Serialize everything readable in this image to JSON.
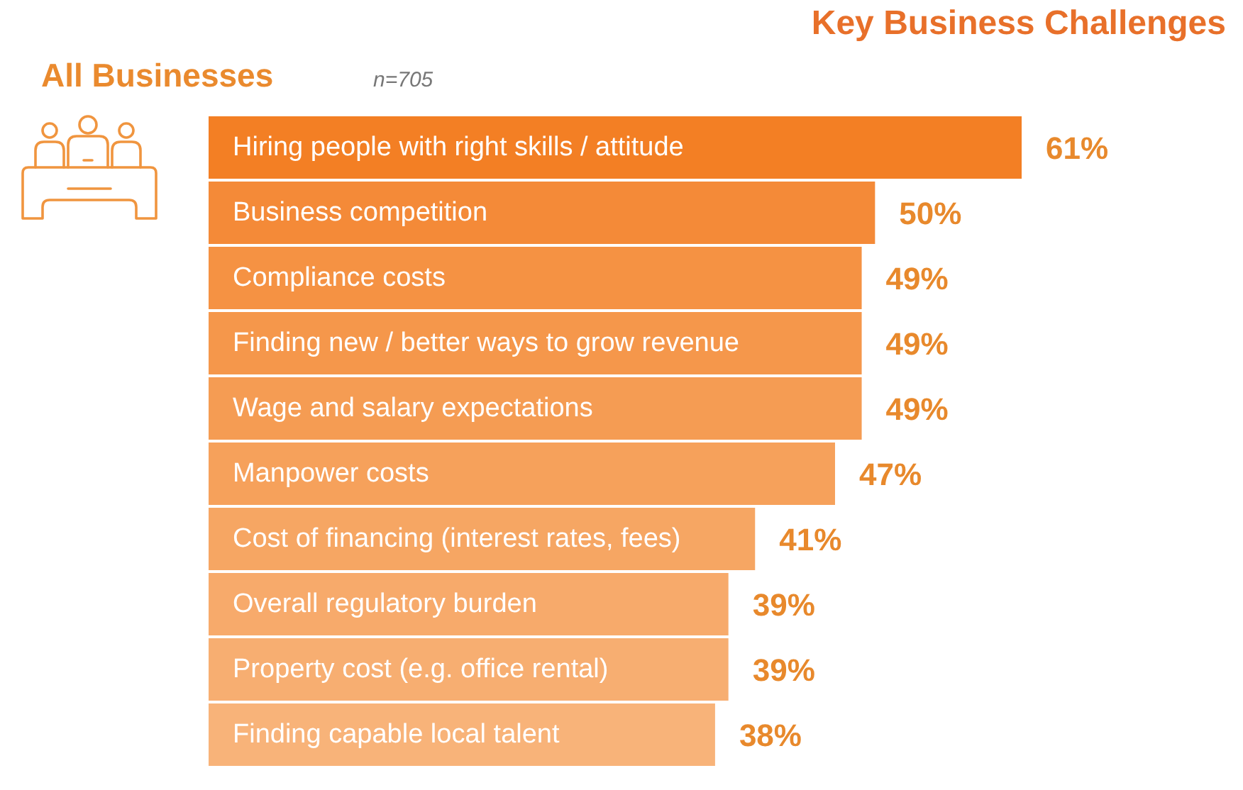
{
  "chart_data": {
    "type": "bar",
    "orientation": "horizontal",
    "title": "Key Business Challenges",
    "subtitle": "All Businesses",
    "annotations": [
      "n=705"
    ],
    "categories": [
      "Hiring people with right skills / attitude",
      "Business competition",
      "Compliance costs",
      "Finding new / better ways to grow revenue",
      "Wage and salary expectations",
      "Manpower costs",
      "Cost of financing (interest rates, fees)",
      "Overall regulatory burden",
      "Property cost (e.g. office rental)",
      "Finding capable local talent"
    ],
    "values": [
      61,
      50,
      49,
      49,
      49,
      47,
      41,
      39,
      39,
      38
    ],
    "colors": [
      "#f37f24",
      "#f48a38",
      "#f59243",
      "#f5974b",
      "#f59c53",
      "#f6a15b",
      "#f6a663",
      "#f7aa6b",
      "#f7ae71",
      "#f8b379"
    ],
    "value_labels": [
      "61%",
      "50%",
      "49%",
      "49%",
      "49%",
      "47%",
      "41%",
      "39%",
      "39%",
      "38%"
    ],
    "tick_labels": "y"
  }
}
